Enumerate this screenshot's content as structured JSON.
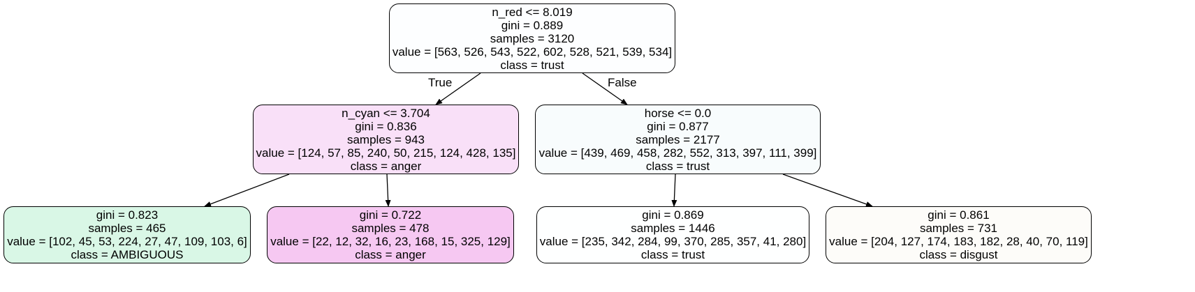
{
  "tree": {
    "nodes": [
      {
        "id": "root",
        "lines": [
          "n_red <= 8.019",
          "gini = 0.889",
          "samples = 3120",
          "value = [563, 526, 543, 522, 602, 528, 521, 539, 534]",
          "class = trust"
        ],
        "fill": "#fdfeff"
      },
      {
        "id": "left",
        "lines": [
          "n_cyan <= 3.704",
          "gini = 0.836",
          "samples = 943",
          "value = [124, 57, 85, 240, 50, 215, 124, 428, 135]",
          "class = anger"
        ],
        "fill": "#f9e0f8"
      },
      {
        "id": "right",
        "lines": [
          "horse <= 0.0",
          "gini = 0.877",
          "samples = 2177",
          "value = [439, 469, 458, 282, 552, 313, 397, 111, 399]",
          "class = trust"
        ],
        "fill": "#f8fcfd"
      },
      {
        "id": "ll",
        "lines": [
          "gini = 0.823",
          "samples = 465",
          "value = [102, 45, 53, 224, 27, 47, 109, 103, 6]",
          "class = AMBIGUOUS"
        ],
        "fill": "#d9f7e6"
      },
      {
        "id": "lr",
        "lines": [
          "gini = 0.722",
          "samples = 478",
          "value = [22, 12, 32, 16, 23, 168, 15, 325, 129]",
          "class = anger"
        ],
        "fill": "#f6c8f2"
      },
      {
        "id": "rl",
        "lines": [
          "gini = 0.869",
          "samples = 1446",
          "value = [235, 342, 284, 99, 370, 285, 357, 41, 280]",
          "class = trust"
        ],
        "fill": "#feffff"
      },
      {
        "id": "rr",
        "lines": [
          "gini = 0.861",
          "samples = 731",
          "value = [204, 127, 174, 183, 182, 28, 40, 70, 119]",
          "class = disgust"
        ],
        "fill": "#fdfcf9"
      }
    ],
    "edges": [
      {
        "from": "root",
        "to": "left",
        "label": "True"
      },
      {
        "from": "root",
        "to": "right",
        "label": "False"
      },
      {
        "from": "left",
        "to": "ll",
        "label": ""
      },
      {
        "from": "left",
        "to": "lr",
        "label": ""
      },
      {
        "from": "right",
        "to": "rl",
        "label": ""
      },
      {
        "from": "right",
        "to": "rr",
        "label": ""
      }
    ]
  }
}
